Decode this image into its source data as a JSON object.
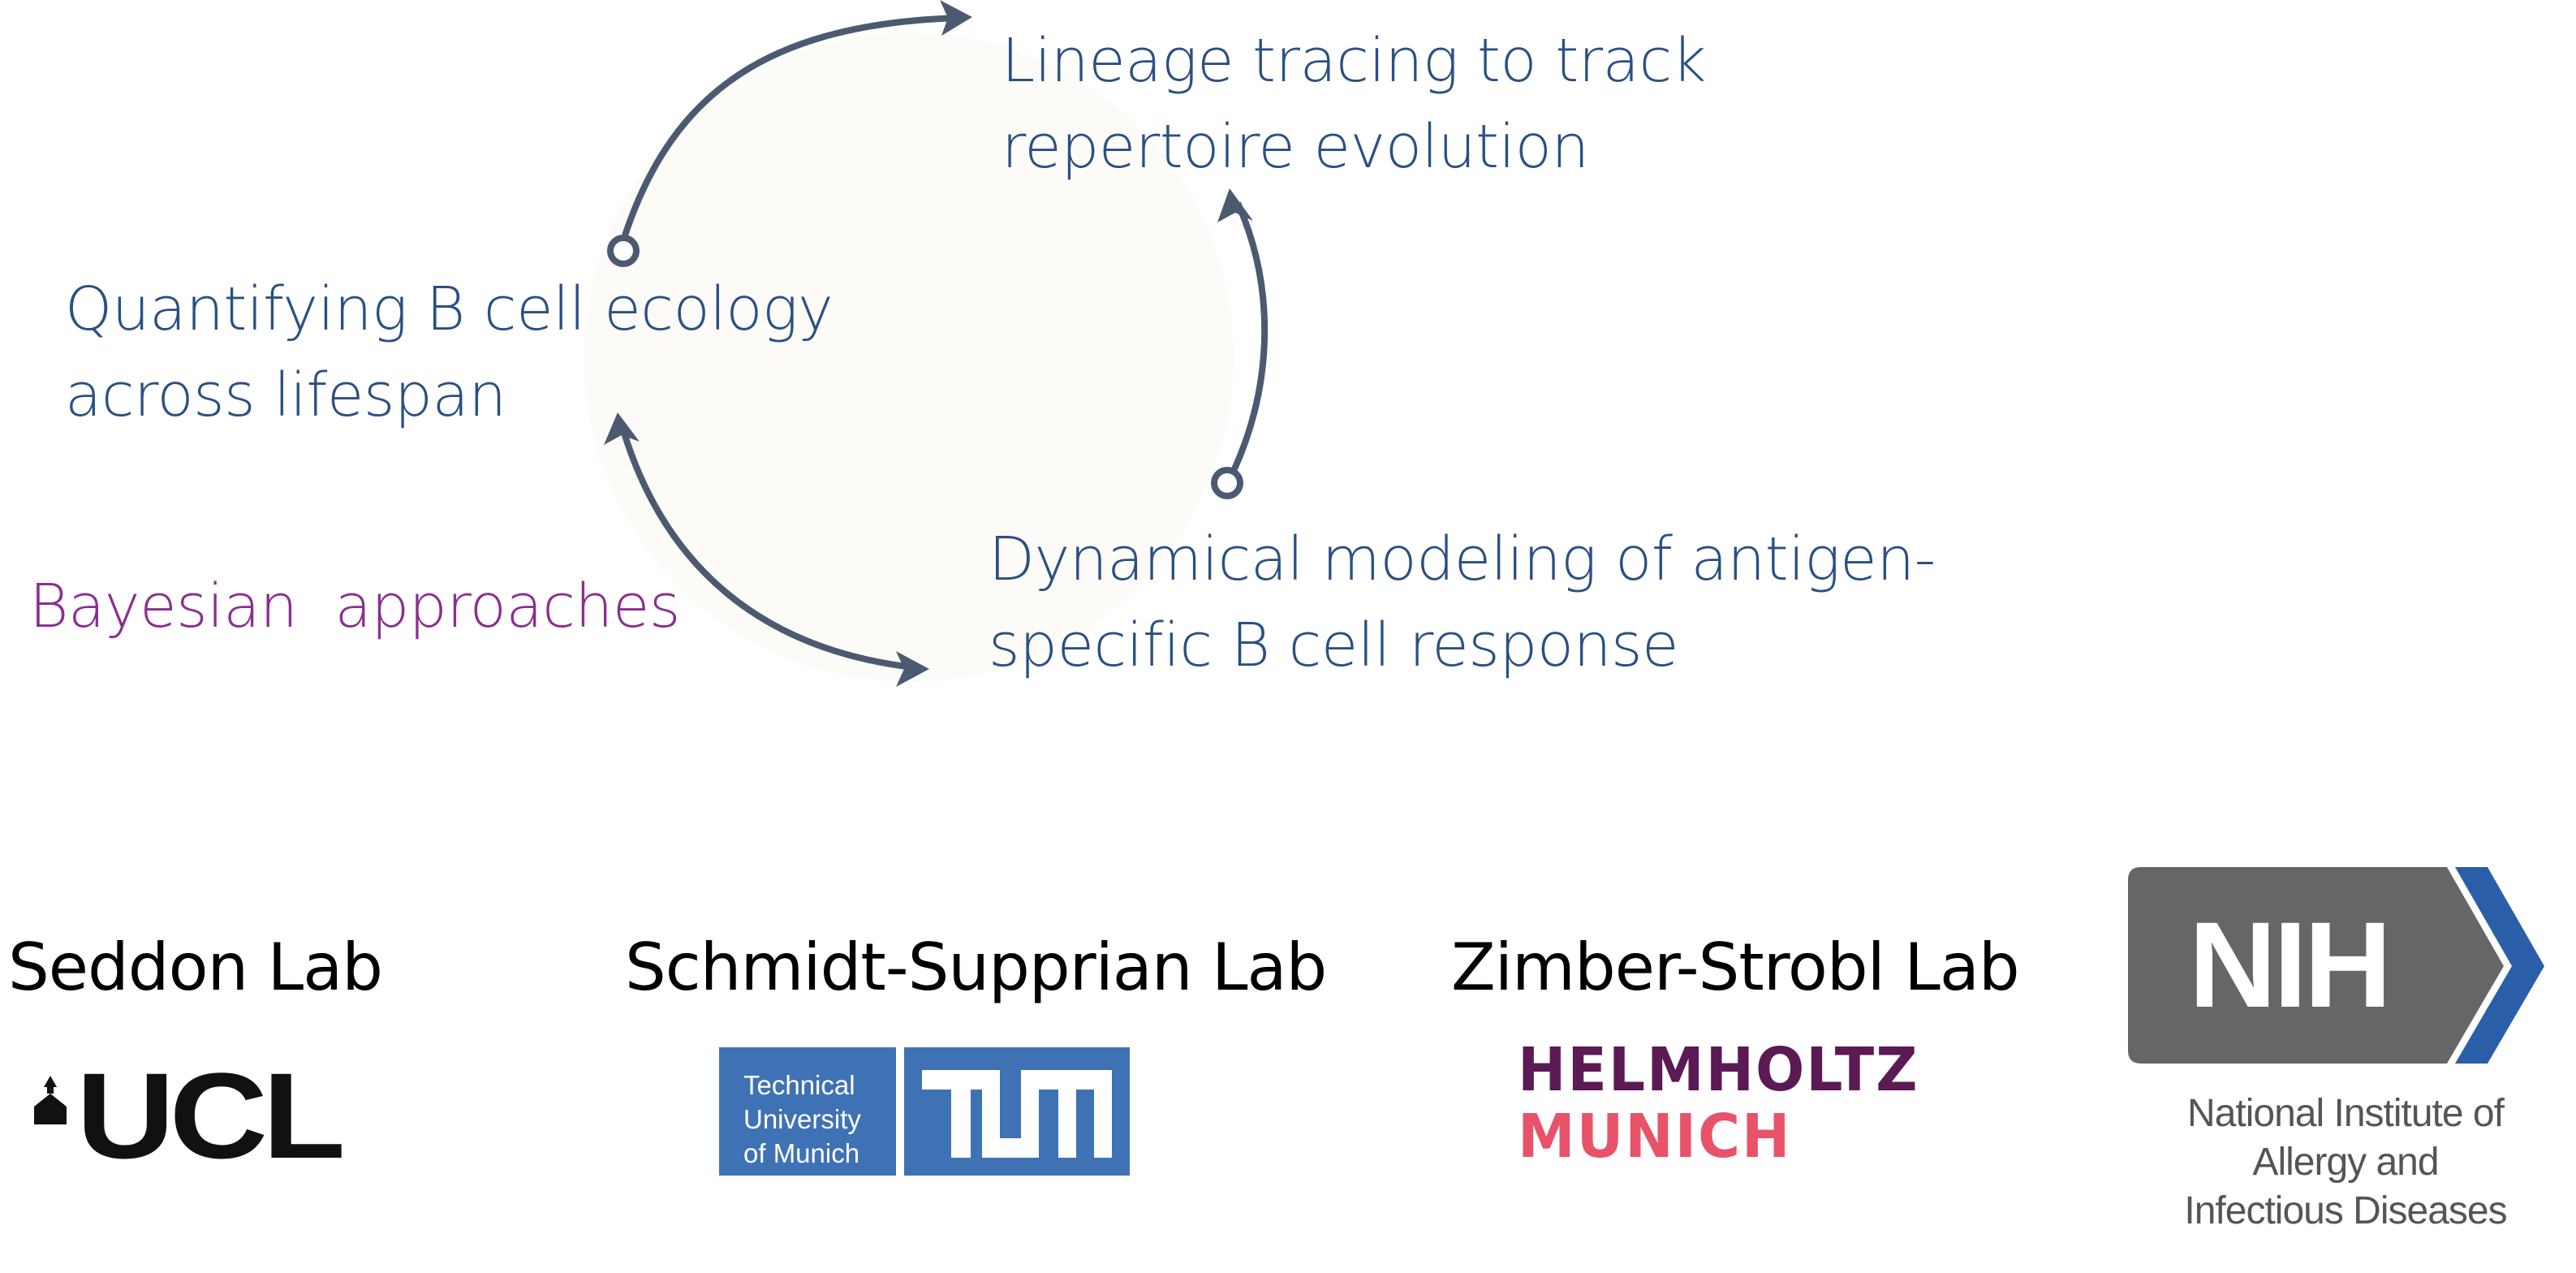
{
  "diagram": {
    "colors": {
      "node_text": "#2b4f84",
      "bayesian_text": "#8b2e8f",
      "arrow": "#4b5a70",
      "circle_fill": "#fcfbf7"
    },
    "nodes": {
      "lineage": "Lineage tracing to track\nrepertoire evolution",
      "ecology": "Quantifying B cell ecology\nacross lifespan",
      "dynamical": "Dynamical modeling of antigen-\nspecific B cell response",
      "bayesian": "Bayesian  approaches"
    }
  },
  "labs": {
    "seddon": {
      "name": "Seddon Lab",
      "logo_text": "UCL"
    },
    "schmidt": {
      "name": "Schmidt-Supprian Lab",
      "logo_caption": "Technical\nUniversity\nof Munich"
    },
    "zimber": {
      "name": "Zimber-Strobl Lab",
      "logo_line1": "HELMHOLTZ",
      "logo_line2": "MUNICH",
      "colors": {
        "line1": "#5b1a53",
        "line2": "#e8536a"
      }
    },
    "nih": {
      "logo_text": "NIH",
      "caption": "National Institute of\nAllergy and\nInfectious Diseases",
      "colors": {
        "box": "#666666",
        "chevron": "#2b5ea8"
      }
    }
  }
}
